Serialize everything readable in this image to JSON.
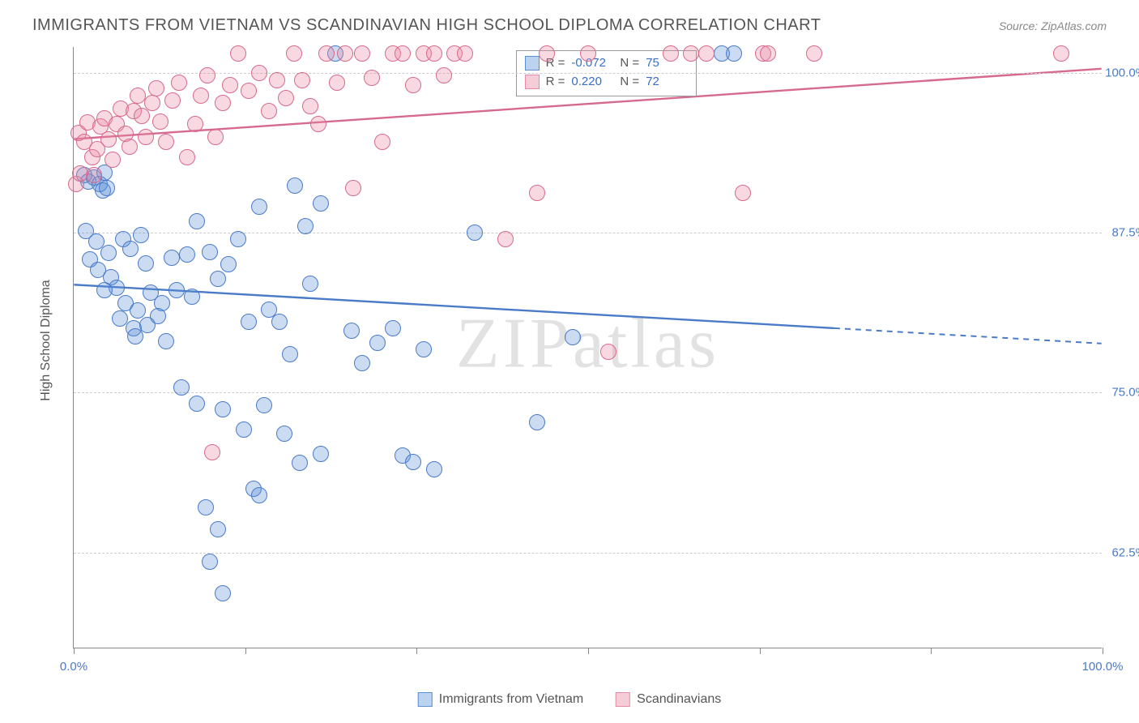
{
  "title": "IMMIGRANTS FROM VIETNAM VS SCANDINAVIAN HIGH SCHOOL DIPLOMA CORRELATION CHART",
  "source": "Source: ZipAtlas.com",
  "watermark": "ZIPatlas",
  "ylabel": "High School Diploma",
  "chart": {
    "type": "scatter",
    "background_color": "#ffffff",
    "grid_color": "#cccccc",
    "grid_dash": "4 4",
    "xlim": [
      0,
      100
    ],
    "ylim": [
      55,
      102
    ],
    "yticks": [
      62.5,
      75.0,
      87.5,
      100.0
    ],
    "ytick_labels": [
      "62.5%",
      "75.0%",
      "87.5%",
      "100.0%"
    ],
    "xticks": [
      0,
      16.67,
      33.33,
      50,
      66.67,
      83.33,
      100
    ],
    "xtick_labels": {
      "0": "0.0%",
      "100": "100.0%"
    },
    "marker_radius": 10,
    "marker_border_width": 1.3,
    "marker_fill_opacity": 0.32,
    "series": [
      {
        "name": "Immigrants from Vietnam",
        "color": "#5b8fd6",
        "border": "#4a7bc8",
        "R": "-0.072",
        "N": "75",
        "trend": {
          "y_at_x0": 83.4,
          "y_at_x100": 78.8,
          "solid_until_x": 74
        },
        "points": [
          [
            1,
            92
          ],
          [
            1.4,
            91.5
          ],
          [
            2,
            91.8
          ],
          [
            2.5,
            91.3
          ],
          [
            2.8,
            90.8
          ],
          [
            3,
            92.2
          ],
          [
            3.2,
            91.0
          ],
          [
            1.2,
            87.6
          ],
          [
            2.2,
            86.8
          ],
          [
            3.4,
            85.9
          ],
          [
            4.8,
            87.0
          ],
          [
            5.5,
            86.2
          ],
          [
            6.5,
            87.3
          ],
          [
            7.0,
            85.1
          ],
          [
            3.6,
            84.0
          ],
          [
            4.2,
            83.2
          ],
          [
            5.0,
            82.0
          ],
          [
            6.2,
            81.4
          ],
          [
            7.5,
            82.8
          ],
          [
            8.6,
            82.0
          ],
          [
            1.6,
            85.4
          ],
          [
            2.4,
            84.6
          ],
          [
            3.0,
            83.0
          ],
          [
            4.5,
            80.8
          ],
          [
            5.8,
            80.0
          ],
          [
            6.0,
            79.4
          ],
          [
            7.2,
            80.3
          ],
          [
            8.2,
            81.0
          ],
          [
            9.0,
            79.0
          ],
          [
            10.0,
            83.0
          ],
          [
            11.0,
            85.8
          ],
          [
            12.0,
            88.4
          ],
          [
            13.2,
            86.0
          ],
          [
            14.0,
            83.9
          ],
          [
            15.0,
            85.0
          ],
          [
            16.0,
            87.0
          ],
          [
            17.0,
            80.5
          ],
          [
            18.0,
            89.5
          ],
          [
            19.0,
            81.5
          ],
          [
            20.0,
            80.5
          ],
          [
            21.0,
            78.0
          ],
          [
            23.0,
            83.5
          ],
          [
            24.0,
            89.8
          ],
          [
            25.4,
            101.5
          ],
          [
            10.5,
            75.4
          ],
          [
            12.0,
            74.1
          ],
          [
            14.5,
            73.7
          ],
          [
            16.5,
            72.1
          ],
          [
            18.5,
            74.0
          ],
          [
            20.5,
            71.8
          ],
          [
            22.0,
            69.5
          ],
          [
            24.0,
            70.2
          ],
          [
            27.0,
            79.8
          ],
          [
            28.0,
            77.3
          ],
          [
            29.5,
            78.9
          ],
          [
            31.0,
            80.0
          ],
          [
            32.0,
            70.1
          ],
          [
            33.0,
            69.6
          ],
          [
            34.0,
            78.4
          ],
          [
            35.0,
            69.0
          ],
          [
            12.8,
            66.0
          ],
          [
            13.2,
            61.8
          ],
          [
            14.0,
            64.3
          ],
          [
            14.5,
            59.3
          ],
          [
            17.5,
            67.5
          ],
          [
            18.0,
            67.0
          ],
          [
            39.0,
            87.5
          ],
          [
            45.0,
            72.7
          ],
          [
            48.5,
            79.3
          ],
          [
            21.5,
            91.2
          ],
          [
            63.0,
            101.5
          ],
          [
            64.2,
            101.5
          ],
          [
            22.5,
            88.0
          ],
          [
            9.5,
            85.5
          ],
          [
            11.5,
            82.5
          ]
        ]
      },
      {
        "name": "Scandinavians",
        "color": "#e88aa6",
        "border": "#d66a8e",
        "R": "0.220",
        "N": "72",
        "trend": {
          "y_at_x0": 94.8,
          "y_at_x100": 100.3,
          "solid_until_x": 100
        },
        "points": [
          [
            0.5,
            95.3
          ],
          [
            1.0,
            94.6
          ],
          [
            1.3,
            96.1
          ],
          [
            1.8,
            93.4
          ],
          [
            2.0,
            92.0
          ],
          [
            2.3,
            94.0
          ],
          [
            2.6,
            95.8
          ],
          [
            3.0,
            96.4
          ],
          [
            3.4,
            94.8
          ],
          [
            3.8,
            93.2
          ],
          [
            4.2,
            96.0
          ],
          [
            4.6,
            97.2
          ],
          [
            5.0,
            95.2
          ],
          [
            5.4,
            94.2
          ],
          [
            5.8,
            97.0
          ],
          [
            6.2,
            98.2
          ],
          [
            6.6,
            96.6
          ],
          [
            7.0,
            95.0
          ],
          [
            7.6,
            97.6
          ],
          [
            8.0,
            98.8
          ],
          [
            8.4,
            96.2
          ],
          [
            9.0,
            94.6
          ],
          [
            9.6,
            97.8
          ],
          [
            10.2,
            99.2
          ],
          [
            11.0,
            93.4
          ],
          [
            11.8,
            96.0
          ],
          [
            12.4,
            98.2
          ],
          [
            13.0,
            99.8
          ],
          [
            13.8,
            95.0
          ],
          [
            14.5,
            97.6
          ],
          [
            15.2,
            99.0
          ],
          [
            16.0,
            101.5
          ],
          [
            17.0,
            98.6
          ],
          [
            18.0,
            100.0
          ],
          [
            19.0,
            97.0
          ],
          [
            19.8,
            99.4
          ],
          [
            20.6,
            98.0
          ],
          [
            21.4,
            101.5
          ],
          [
            22.2,
            99.4
          ],
          [
            23.0,
            97.4
          ],
          [
            23.8,
            96.0
          ],
          [
            24.6,
            101.5
          ],
          [
            25.6,
            99.2
          ],
          [
            26.4,
            101.5
          ],
          [
            27.2,
            91.0
          ],
          [
            28.0,
            101.5
          ],
          [
            29.0,
            99.6
          ],
          [
            30.0,
            94.6
          ],
          [
            31.0,
            101.5
          ],
          [
            32.0,
            101.5
          ],
          [
            33.0,
            99.0
          ],
          [
            34.0,
            101.5
          ],
          [
            35.0,
            101.5
          ],
          [
            36.0,
            99.8
          ],
          [
            37.0,
            101.5
          ],
          [
            38.0,
            101.5
          ],
          [
            46.0,
            101.5
          ],
          [
            42.0,
            87.0
          ],
          [
            45.0,
            90.6
          ],
          [
            13.5,
            70.3
          ],
          [
            52.0,
            78.2
          ],
          [
            50.0,
            101.5
          ],
          [
            58.0,
            101.5
          ],
          [
            60.0,
            101.5
          ],
          [
            61.5,
            101.5
          ],
          [
            65.0,
            90.6
          ],
          [
            67.0,
            101.5
          ],
          [
            67.5,
            101.5
          ],
          [
            72.0,
            101.5
          ],
          [
            96.0,
            101.5
          ],
          [
            0.2,
            91.3
          ],
          [
            0.6,
            92.1
          ]
        ]
      }
    ]
  },
  "rbox": {
    "rows": [
      {
        "swatch_fill": "#bcd3ef",
        "swatch_border": "#5b8fd6",
        "r": "-0.072",
        "n": "75"
      },
      {
        "swatch_fill": "#f5cdd9",
        "swatch_border": "#e88aa6",
        "r": "0.220",
        "n": "72"
      }
    ],
    "label_R": "R =",
    "label_N": "N ="
  },
  "legend": {
    "items": [
      {
        "label": "Immigrants from Vietnam",
        "fill": "#bcd3ef",
        "border": "#5b8fd6"
      },
      {
        "label": "Scandinavians",
        "fill": "#f5cdd9",
        "border": "#e88aa6"
      }
    ]
  }
}
